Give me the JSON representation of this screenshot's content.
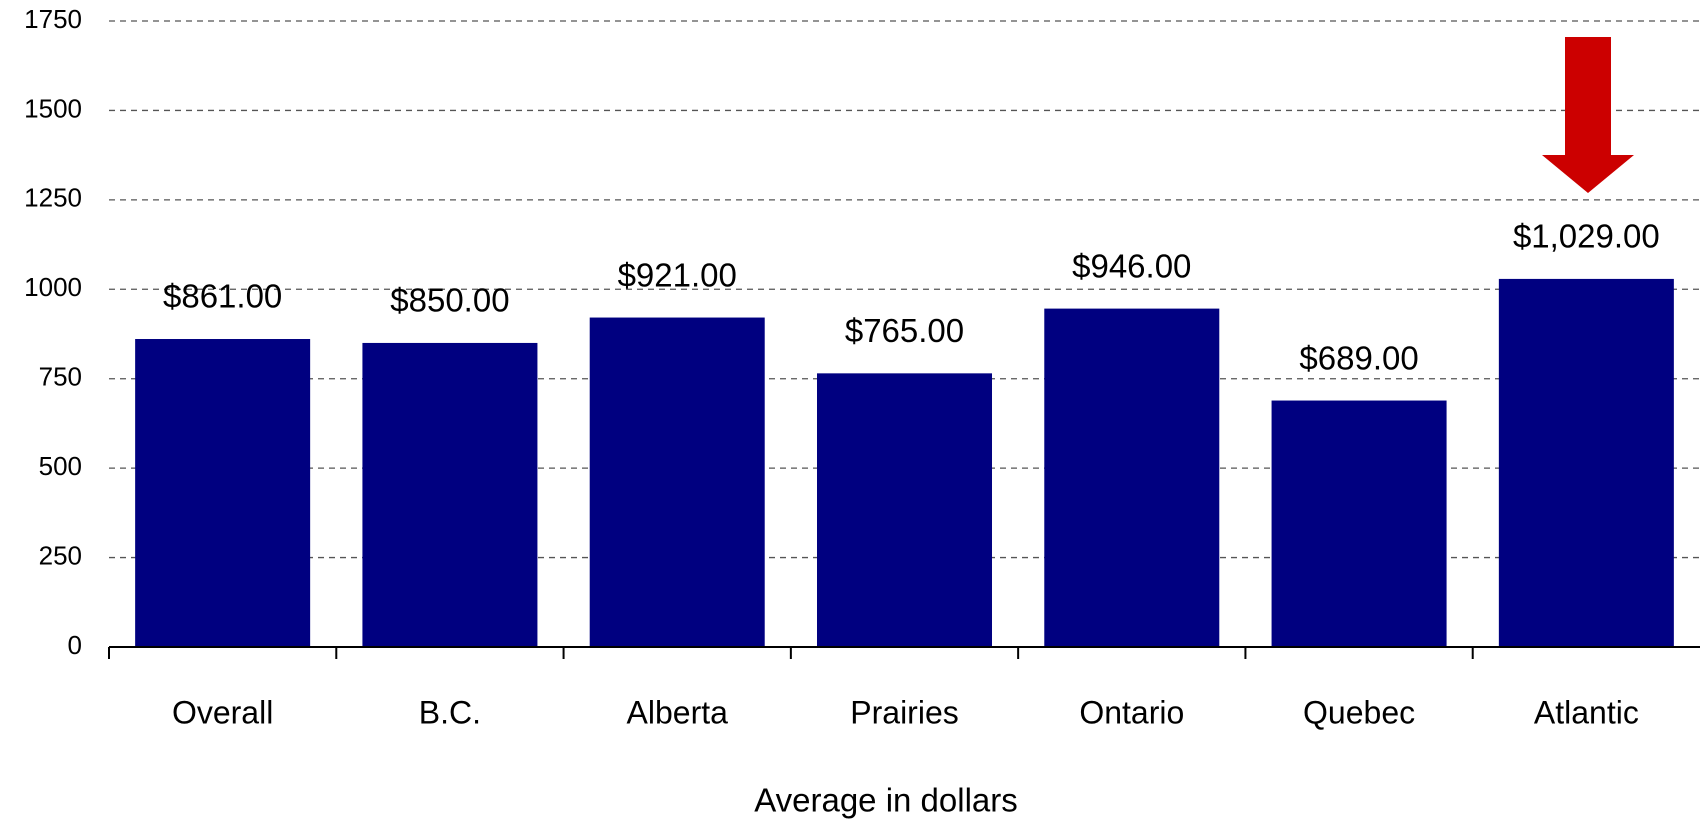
{
  "chart_data": {
    "type": "bar",
    "categories": [
      "Overall",
      "B.C.",
      "Alberta",
      "Prairies",
      "Ontario",
      "Quebec",
      "Atlantic"
    ],
    "values": [
      861,
      850,
      921,
      765,
      946,
      689,
      1029
    ],
    "value_labels": [
      "$861.00",
      "$850.00",
      "$921.00",
      "$765.00",
      "$946.00",
      "$689.00",
      "$1,029.00"
    ],
    "color": "#000080",
    "x_label": "Average in dollars",
    "ylim": [
      0,
      1750
    ],
    "yticks": [
      0,
      250,
      500,
      750,
      1000,
      1250,
      1500,
      1750
    ],
    "grid": true
  }
}
